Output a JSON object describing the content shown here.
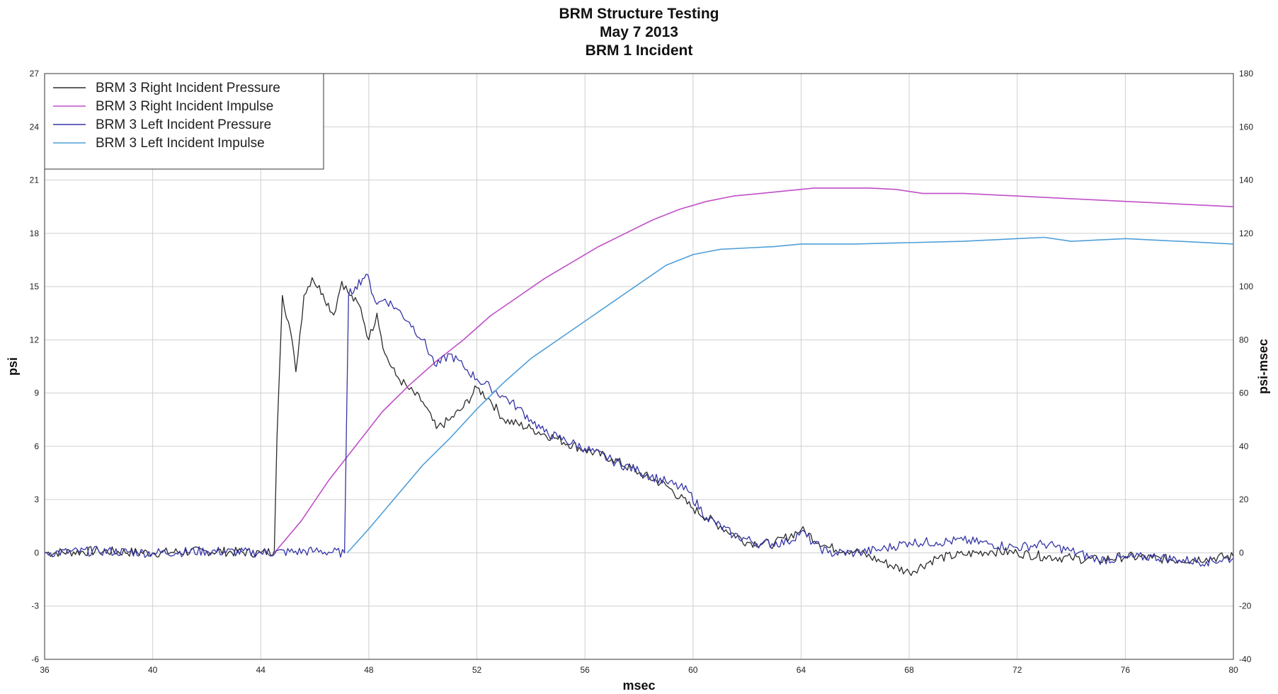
{
  "chart_data": {
    "type": "line",
    "title": [
      "BRM Structure Testing",
      "May 7 2013",
      "BRM 1 Incident"
    ],
    "xlabel": "msec",
    "ylabel_left": "psi",
    "ylabel_right": "psi-msec",
    "xlim": [
      36,
      80
    ],
    "ylim_left": [
      -6,
      27
    ],
    "ylim_right": [
      -40,
      180
    ],
    "x_ticks": [
      "36",
      "40",
      "44",
      "48",
      "52",
      "56",
      "60",
      "64",
      "68",
      "72",
      "76",
      "80"
    ],
    "y_left_ticks": [
      "-6",
      "-3",
      "0",
      "3",
      "6",
      "9",
      "12",
      "15",
      "18",
      "21",
      "24",
      "27"
    ],
    "y_right_ticks": [
      "-40",
      "-20",
      "0",
      "20",
      "40",
      "60",
      "80",
      "100",
      "120",
      "140",
      "160",
      "180"
    ],
    "grid": true,
    "legend_position": "top-left",
    "series": [
      {
        "name": "BRM 3 Right Incident Pressure",
        "axis": "left",
        "color": "#2b2b2b",
        "x": [
          36,
          38,
          40,
          42,
          44,
          44.5,
          44.6,
          44.8,
          45.1,
          45.3,
          45.6,
          45.9,
          46.3,
          46.7,
          47.0,
          47.3,
          47.7,
          48.0,
          48.3,
          48.6,
          49.0,
          49.5,
          50.0,
          50.5,
          51.0,
          51.5,
          52.0,
          52.5,
          53.0,
          54.0,
          55.0,
          56.0,
          57.0,
          58.0,
          59.0,
          60.0,
          61.0,
          62.0,
          63.0,
          64.0,
          65.0,
          66.0,
          67.0,
          68.0,
          69.0,
          70.0,
          71.0,
          72.0,
          73.0,
          74.0,
          75.0,
          76.0,
          77.0,
          78.0,
          79.0,
          80.0
        ],
        "y": [
          0,
          0.1,
          0,
          0.1,
          0,
          0.1,
          6.5,
          14.5,
          12.5,
          10.2,
          14.5,
          15.5,
          14.6,
          13.4,
          15.3,
          14.5,
          13.8,
          12.0,
          13.5,
          11.2,
          10.0,
          9.2,
          8.5,
          7.0,
          7.5,
          8.2,
          9.3,
          8.6,
          7.5,
          7.0,
          6.4,
          5.8,
          5.3,
          4.5,
          3.8,
          2.5,
          1.5,
          0.6,
          0.5,
          1.3,
          0.3,
          0.1,
          -0.5,
          -1.1,
          -0.3,
          -0.1,
          0.1,
          0.0,
          -0.2,
          -0.3,
          -0.4,
          -0.2,
          -0.3,
          -0.4,
          -0.3,
          -0.2
        ]
      },
      {
        "name": "BRM 3 Right Incident Impulse",
        "axis": "right",
        "color": "#c04fc8",
        "x": [
          44.5,
          45.5,
          46.5,
          47.5,
          48.5,
          49.5,
          50.5,
          51.5,
          52.5,
          53.5,
          54.5,
          55.5,
          56.5,
          57.5,
          58.5,
          59.5,
          60.5,
          61.5,
          62.5,
          63.5,
          64.5,
          65.5,
          66.5,
          67.5,
          68.5,
          70,
          72,
          74,
          76,
          78,
          80
        ],
        "y": [
          0,
          12,
          27,
          40,
          53,
          63,
          72,
          80,
          89,
          96,
          103,
          109,
          115,
          120,
          125,
          129,
          132,
          134,
          135,
          136,
          137,
          137,
          137,
          136.5,
          135,
          135,
          134,
          133,
          132,
          131,
          130
        ]
      },
      {
        "name": "BRM 3 Left Incident Pressure",
        "axis": "left",
        "color": "#3535a8",
        "x": [
          36,
          38,
          40,
          42,
          44,
          46,
          47.1,
          47.25,
          47.5,
          47.9,
          48.3,
          48.6,
          49.0,
          49.5,
          50.0,
          50.5,
          51.0,
          51.5,
          52.0,
          52.5,
          53.0,
          53.5,
          54.0,
          54.5,
          55.0,
          56.0,
          57.0,
          58.0,
          59.0,
          59.8,
          60.5,
          61.5,
          62.5,
          63.5,
          64.0,
          64.5,
          65.0,
          66.0,
          67.0,
          68.0,
          69.0,
          70.0,
          71.0,
          72.0,
          73.0,
          74.0,
          75.0,
          76.0,
          77.0,
          78.0,
          79.0,
          80.0
        ],
        "y": [
          0,
          0.1,
          0,
          0.1,
          0,
          0.1,
          0,
          14.5,
          15.0,
          15.7,
          14.0,
          14.3,
          13.8,
          13.0,
          12.0,
          10.5,
          11.2,
          10.5,
          9.8,
          9.3,
          8.8,
          8.2,
          7.5,
          6.8,
          6.5,
          5.9,
          5.2,
          4.6,
          4.0,
          3.5,
          2.0,
          1.0,
          0.5,
          0.6,
          1.2,
          0.5,
          0.0,
          0.0,
          0.2,
          0.6,
          0.6,
          0.7,
          0.5,
          0.3,
          0.5,
          0.1,
          -0.4,
          -0.3,
          -0.2,
          -0.4,
          -0.5,
          -0.3
        ]
      },
      {
        "name": "BRM 3 Left Incident Impulse",
        "axis": "right",
        "color": "#4f9fd8",
        "x": [
          47.2,
          48.0,
          49.0,
          50.0,
          51.0,
          52.0,
          53.0,
          54.0,
          55.0,
          56.0,
          57.0,
          58.0,
          59.0,
          60.0,
          61.0,
          62.0,
          63.0,
          64.0,
          66.0,
          68.0,
          70.0,
          72.0,
          73.0,
          74.0,
          76.0,
          78.0,
          80.0
        ],
        "y": [
          0,
          9,
          21,
          33,
          43,
          54,
          64,
          73,
          80,
          87,
          94,
          101,
          108,
          112,
          114,
          114.5,
          115,
          116,
          116,
          116.5,
          117,
          118,
          118.5,
          117,
          118,
          117,
          116
        ]
      }
    ]
  }
}
